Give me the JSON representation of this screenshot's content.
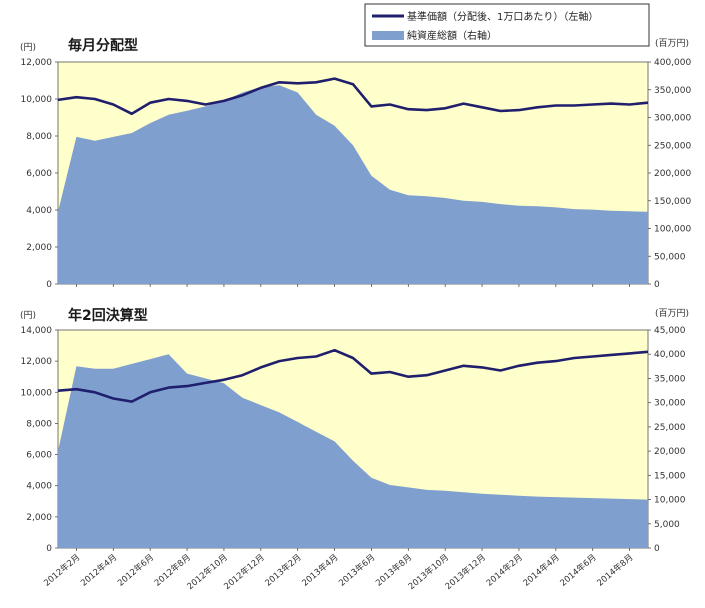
{
  "legend": {
    "line_label": "基準価額（分配後、1万口あたり）（左軸）",
    "area_label": "純資産総額（右軸）"
  },
  "colors": {
    "plot_background": "#ffffcc",
    "area_fill": "#7f9fcf",
    "line": "#1f1f6e",
    "axis_text": "#333333"
  },
  "x_ticks": [
    "2012年2月",
    "2012年4月",
    "2012年6月",
    "2012年8月",
    "2012年10月",
    "2012年12月",
    "2013年2月",
    "2013年4月",
    "2013年6月",
    "2013年8月",
    "2013年10月",
    "2013年12月",
    "2014年2月",
    "2014年4月",
    "2014年6月",
    "2014年8月"
  ],
  "chart_data": [
    {
      "type": "area",
      "title": "毎月分配型",
      "left_unit": "(円)",
      "right_unit": "(百万円)",
      "ylim_left": [
        0,
        12000
      ],
      "ylim_right": [
        0,
        400000
      ],
      "left_ticks": [
        "0",
        "2,000",
        "4,000",
        "6,000",
        "8,000",
        "10,000",
        "12,000"
      ],
      "right_ticks": [
        "0",
        "50,000",
        "100,000",
        "150,000",
        "200,000",
        "250,000",
        "300,000",
        "350,000",
        "400,000"
      ],
      "x": [
        "2012-01",
        "2012-02",
        "2012-03",
        "2012-04",
        "2012-05",
        "2012-06",
        "2012-07",
        "2012-08",
        "2012-09",
        "2012-10",
        "2012-11",
        "2012-12",
        "2013-01",
        "2013-02",
        "2013-03",
        "2013-04",
        "2013-05",
        "2013-06",
        "2013-07",
        "2013-08",
        "2013-09",
        "2013-10",
        "2013-11",
        "2013-12",
        "2014-01",
        "2014-02",
        "2014-03",
        "2014-04",
        "2014-05",
        "2014-06",
        "2014-07",
        "2014-08",
        "2014-09"
      ],
      "series": [
        {
          "name": "基準価額（分配後、1万口あたり）（左軸）",
          "axis": "left",
          "values": [
            9950,
            10100,
            10000,
            9700,
            9200,
            9800,
            10000,
            9900,
            9700,
            9900,
            10200,
            10600,
            10900,
            10850,
            10900,
            11100,
            10800,
            9600,
            9700,
            9450,
            9400,
            9500,
            9750,
            9550,
            9350,
            9400,
            9550,
            9650,
            9650,
            9700,
            9750,
            9700,
            9800
          ]
        },
        {
          "name": "純資産総額（右軸）",
          "axis": "right",
          "values": [
            130000,
            265000,
            258000,
            265000,
            272000,
            290000,
            305000,
            312000,
            320000,
            330000,
            345000,
            355000,
            358000,
            345000,
            305000,
            285000,
            250000,
            195000,
            170000,
            160000,
            158000,
            155000,
            150000,
            148000,
            144000,
            141000,
            140000,
            138000,
            135000,
            134000,
            132000,
            131000,
            130000
          ]
        }
      ]
    },
    {
      "type": "area",
      "title": "年2回決算型",
      "left_unit": "(円)",
      "right_unit": "(百万円)",
      "ylim_left": [
        0,
        14000
      ],
      "ylim_right": [
        0,
        45000
      ],
      "left_ticks": [
        "0",
        "2,000",
        "4,000",
        "6,000",
        "8,000",
        "10,000",
        "12,000",
        "14,000"
      ],
      "right_ticks": [
        "0",
        "5,000",
        "10,000",
        "15,000",
        "20,000",
        "25,000",
        "30,000",
        "35,000",
        "40,000",
        "45,000"
      ],
      "x": [
        "2012-01",
        "2012-02",
        "2012-03",
        "2012-04",
        "2012-05",
        "2012-06",
        "2012-07",
        "2012-08",
        "2012-09",
        "2012-10",
        "2012-11",
        "2012-12",
        "2013-01",
        "2013-02",
        "2013-03",
        "2013-04",
        "2013-05",
        "2013-06",
        "2013-07",
        "2013-08",
        "2013-09",
        "2013-10",
        "2013-11",
        "2013-12",
        "2014-01",
        "2014-02",
        "2014-03",
        "2014-04",
        "2014-05",
        "2014-06",
        "2014-07",
        "2014-08",
        "2014-09"
      ],
      "series": [
        {
          "name": "基準価額（分配後、1万口あたり）（左軸）",
          "axis": "left",
          "values": [
            10100,
            10200,
            10000,
            9600,
            9400,
            10000,
            10300,
            10400,
            10600,
            10800,
            11100,
            11600,
            12000,
            12200,
            12300,
            12700,
            12200,
            11200,
            11300,
            11000,
            11100,
            11400,
            11700,
            11600,
            11400,
            11700,
            11900,
            12000,
            12200,
            12300,
            12400,
            12500,
            12600
          ]
        },
        {
          "name": "純資産総額（右軸）",
          "axis": "right",
          "values": [
            20000,
            37500,
            37000,
            37000,
            38000,
            39000,
            40000,
            36000,
            35000,
            34000,
            31000,
            29500,
            28000,
            26000,
            24000,
            22000,
            18000,
            14500,
            13000,
            12500,
            12000,
            11800,
            11500,
            11200,
            11000,
            10800,
            10600,
            10500,
            10400,
            10300,
            10200,
            10100,
            10000
          ]
        }
      ]
    }
  ]
}
